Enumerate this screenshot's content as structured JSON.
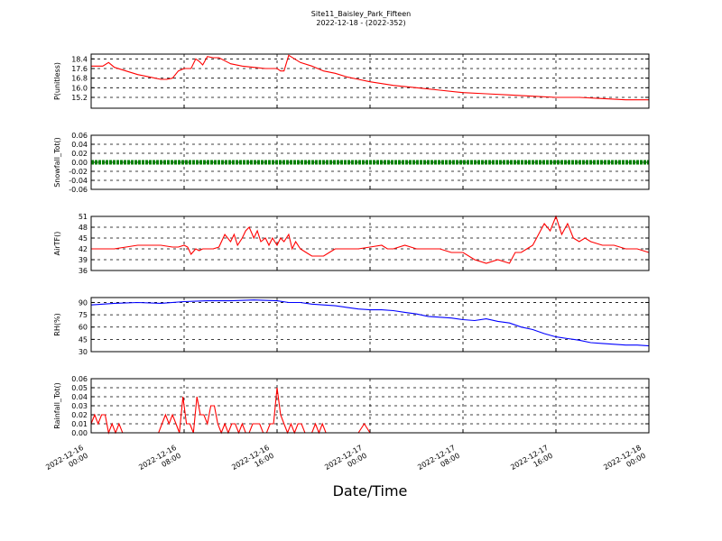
{
  "figure": {
    "title_line1": "Site11_Baisley_Park_Fifteen",
    "title_line2": "2022-12-18 - (2022-352)",
    "xlabel": "Date/Time"
  },
  "colors": {
    "red": "#ff0000",
    "blue": "#0000ff",
    "green": "#008000"
  },
  "chart_data": [
    {
      "type": "line",
      "ylabel": "P(unitless)",
      "ylim": [
        14.3,
        18.8
      ],
      "yticks": [
        "15.2",
        "16.0",
        "16.8",
        "17.6",
        "18.4"
      ],
      "grid": true,
      "series": [
        {
          "color": "#ff0000",
          "x": [
            0,
            1,
            1.5,
            2,
            3,
            4,
            5,
            6,
            6.5,
            7,
            7.5,
            8,
            8.3,
            8.6,
            9,
            9.3,
            9.6,
            10,
            10.5,
            11,
            12,
            13,
            14,
            15,
            15.5,
            16,
            16.3,
            16.6,
            17,
            18,
            19,
            20,
            21,
            22,
            23,
            24,
            26,
            28,
            30,
            32,
            34,
            36,
            38,
            40,
            42,
            44,
            46,
            48
          ],
          "y": [
            17.8,
            17.8,
            18.1,
            17.7,
            17.4,
            17.1,
            16.9,
            16.7,
            16.7,
            16.8,
            17.4,
            17.6,
            17.6,
            17.6,
            18.4,
            18.2,
            17.9,
            18.6,
            18.5,
            18.5,
            18.0,
            17.8,
            17.7,
            17.6,
            17.6,
            17.6,
            17.4,
            17.4,
            18.7,
            18.1,
            17.8,
            17.4,
            17.2,
            16.9,
            16.7,
            16.5,
            16.2,
            16.0,
            15.8,
            15.6,
            15.5,
            15.4,
            15.3,
            15.2,
            15.2,
            15.1,
            15.0,
            15.0
          ]
        }
      ]
    },
    {
      "type": "line",
      "ylabel": "Snowfall_Tot()",
      "ylim": [
        -0.06,
        0.06
      ],
      "yticks": [
        "-0.06",
        "-0.04",
        "-0.02",
        "0.00",
        "0.02",
        "0.04",
        "0.06"
      ],
      "grid": true,
      "series": [
        {
          "color": "#008000",
          "x": [
            0,
            48
          ],
          "y": [
            0,
            0
          ]
        }
      ]
    },
    {
      "type": "line",
      "ylabel": "AirTF()",
      "ylim": [
        36,
        51
      ],
      "yticks": [
        "36",
        "39",
        "42",
        "45",
        "48",
        "51"
      ],
      "grid": true,
      "series": [
        {
          "color": "#ff0000",
          "x": [
            0,
            1,
            2,
            3,
            4,
            5,
            6,
            7,
            7.5,
            8,
            8.3,
            8.6,
            9,
            9.3,
            9.6,
            10,
            10.5,
            11,
            11.5,
            12,
            12.3,
            12.6,
            13,
            13.3,
            13.6,
            14,
            14.3,
            14.6,
            15,
            15.3,
            15.6,
            16,
            16.3,
            16.6,
            17,
            17.3,
            17.6,
            18,
            18.5,
            19,
            20,
            20.5,
            21,
            22,
            23,
            24,
            25,
            25.5,
            26,
            27,
            28,
            29,
            30,
            31,
            32,
            33,
            34,
            35,
            36,
            36.5,
            37,
            37.5,
            38,
            38.5,
            39,
            39.5,
            40,
            40.5,
            41,
            41.5,
            42,
            42.5,
            43,
            44,
            45,
            46,
            47,
            48
          ],
          "y": [
            42,
            42,
            42,
            42.5,
            43,
            43,
            43,
            42.5,
            42.5,
            43,
            42.5,
            40.5,
            42,
            41.5,
            42,
            42,
            42,
            42.5,
            46,
            44,
            46,
            43,
            45,
            47,
            48,
            45,
            47,
            44,
            45,
            43,
            45,
            43,
            45,
            44,
            46,
            42,
            44,
            42,
            41,
            40,
            40,
            41,
            42,
            42,
            42,
            42.5,
            43,
            42,
            42,
            43,
            42,
            42,
            42,
            41,
            41,
            39,
            38,
            39,
            38,
            41,
            41,
            42,
            43,
            46,
            49,
            47,
            51,
            46,
            49,
            45,
            44,
            45,
            44,
            43,
            43,
            42,
            42,
            41
          ]
        }
      ]
    },
    {
      "type": "line",
      "ylabel": "RH(%)",
      "ylim": [
        30,
        96
      ],
      "yticks": [
        "30",
        "45",
        "60",
        "75",
        "90"
      ],
      "grid": true,
      "series": [
        {
          "color": "#0000ff",
          "x": [
            0,
            2,
            4,
            6,
            8,
            10,
            12,
            14,
            16,
            17,
            18,
            19,
            20,
            21,
            22,
            23,
            24,
            25,
            26,
            27,
            28,
            29,
            30,
            31,
            32,
            33,
            34,
            35,
            36,
            37,
            38,
            39,
            40,
            41,
            42,
            43,
            44,
            45,
            46,
            47,
            48
          ],
          "y": [
            87,
            89,
            90,
            89,
            91,
            92,
            92,
            93,
            92,
            90,
            90,
            88,
            87,
            86,
            84,
            82,
            81,
            81,
            80,
            78,
            76,
            73,
            72,
            71,
            69,
            68,
            70,
            67,
            65,
            60,
            57,
            52,
            48,
            46,
            44,
            41,
            40,
            39,
            38,
            38,
            37
          ]
        }
      ]
    },
    {
      "type": "line",
      "ylabel": "Rainfall_Tot()",
      "ylim": [
        0,
        0.06
      ],
      "yticks": [
        "0.00",
        "0.01",
        "0.02",
        "0.03",
        "0.04",
        "0.05",
        "0.06"
      ],
      "grid": true,
      "series": [
        {
          "color": "#ff0000",
          "x": [
            0,
            0.3,
            0.6,
            0.9,
            1.2,
            1.5,
            1.8,
            2.1,
            2.4,
            2.7,
            3.5,
            3.8,
            4.2,
            5.5,
            5.8,
            6.1,
            6.4,
            6.7,
            7,
            7.3,
            7.6,
            7.9,
            8.2,
            8.5,
            8.8,
            9.1,
            9.4,
            9.7,
            10,
            10.3,
            10.6,
            10.9,
            11.2,
            11.5,
            11.8,
            12.1,
            12.4,
            12.7,
            13,
            13.3,
            13.6,
            13.9,
            14.2,
            14.5,
            14.8,
            15.1,
            15.4,
            15.7,
            16,
            16.3,
            16.6,
            16.9,
            17.2,
            17.5,
            17.8,
            18.1,
            18.4,
            18.7,
            19,
            19.3,
            19.6,
            19.9,
            20.2,
            20.5,
            22,
            23,
            23.5,
            24,
            48
          ],
          "y": [
            0.01,
            0.02,
            0.01,
            0.02,
            0.02,
            0,
            0.01,
            0,
            0.01,
            0,
            0,
            0,
            0,
            0,
            0,
            0.01,
            0.02,
            0.01,
            0.02,
            0.01,
            0,
            0.04,
            0.01,
            0.01,
            0,
            0.04,
            0.02,
            0.02,
            0.01,
            0.03,
            0.03,
            0.01,
            0,
            0.01,
            0,
            0.01,
            0.01,
            0,
            0.01,
            0,
            0,
            0.01,
            0.01,
            0.01,
            0,
            0,
            0.01,
            0.01,
            0.05,
            0.02,
            0.01,
            0,
            0.01,
            0,
            0.01,
            0.01,
            0,
            0,
            0,
            0.01,
            0,
            0.01,
            0,
            0,
            0,
            0,
            0.01,
            0,
            0
          ]
        }
      ]
    }
  ],
  "xaxis": {
    "xlim": [
      0,
      48
    ],
    "ticks": [
      {
        "x": 0,
        "line1": "2022-12-16",
        "line2": "00:00"
      },
      {
        "x": 8,
        "line1": "2022-12-16",
        "line2": "08:00"
      },
      {
        "x": 16,
        "line1": "2022-12-16",
        "line2": "16:00"
      },
      {
        "x": 24,
        "line1": "2022-12-17",
        "line2": "00:00"
      },
      {
        "x": 32,
        "line1": "2022-12-17",
        "line2": "08:00"
      },
      {
        "x": 40,
        "line1": "2022-12-17",
        "line2": "16:00"
      },
      {
        "x": 48,
        "line1": "2022-12-18",
        "line2": "00:00"
      }
    ]
  }
}
